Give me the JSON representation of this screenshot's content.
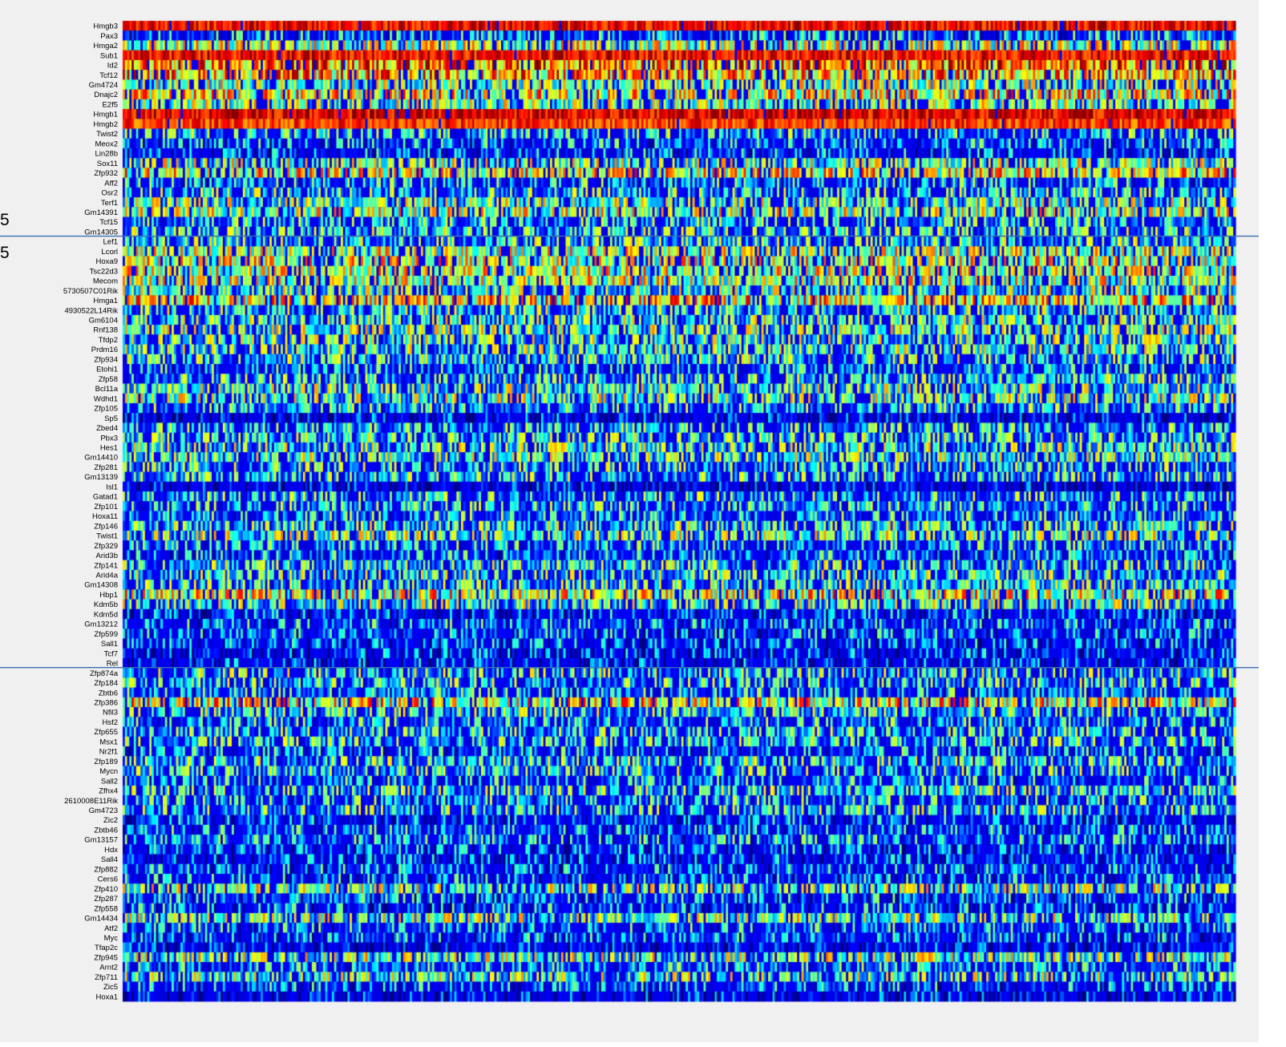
{
  "chart_data": {
    "type": "heatmap",
    "title": "",
    "xlabel": "",
    "ylabel": "",
    "colormap": "jet",
    "colors": {
      "figure_bg": "#f0f0f0",
      "divider": "#3a6fb0"
    },
    "side_labels": [
      "5",
      "5"
    ],
    "rows": [
      "Hmgb3",
      "Pax3",
      "Hmga2",
      "Sub1",
      "Id2",
      "Tcf12",
      "Gm4724",
      "Dnajc2",
      "E2f5",
      "Hmgb1",
      "Hmgb2",
      "Twist2",
      "Meox2",
      "Lin28b",
      "Sox11",
      "Zfp932",
      "Aff2",
      "Osr2",
      "Terf1",
      "Gm14391",
      "Tcf15",
      "Gm14305",
      "Lef1",
      "Lcorl",
      "Hoxa9",
      "Tsc22d3",
      "Mecom",
      "5730507C01Rik",
      "Hmga1",
      "4930522L14Rik",
      "Gm6104",
      "Rnf138",
      "Tfdp2",
      "Prdm16",
      "Zfp934",
      "Etohi1",
      "Zfp58",
      "Bcl11a",
      "Wdhd1",
      "Zfp105",
      "Sp5",
      "Zbed4",
      "Pbx3",
      "Hes1",
      "Gm14410",
      "Zfp281",
      "Gm13139",
      "Isl1",
      "Gatad1",
      "Zfp101",
      "Hoxa11",
      "Zfp146",
      "Twist1",
      "Zfp329",
      "Arid3b",
      "Zfp141",
      "Arid4a",
      "Gm14308",
      "Hbp1",
      "Kdm5b",
      "Kdm5d",
      "Gm13212",
      "Zfp599",
      "Sall1",
      "Tcf7",
      "Rel",
      "Zfp874a",
      "Zfp184",
      "Zbtb6",
      "Zfp386",
      "Nfil3",
      "Hsf2",
      "Zfp655",
      "Msx1",
      "Nr2f1",
      "Zfp189",
      "Mycn",
      "Sall2",
      "Zfhx4",
      "2610008E11Rik",
      "Gm4723",
      "Zic2",
      "Zbtb46",
      "Gm13157",
      "Hdx",
      "Sall4",
      "Zfp882",
      "Cers6",
      "Zfp410",
      "Zfp287",
      "Zfp558",
      "Gm14434",
      "Atf2",
      "Myc",
      "Tfap2c",
      "Zfp945",
      "Arnt2",
      "Zfp711",
      "Zic5",
      "Hoxa1"
    ],
    "row_mean_level": [
      0.88,
      0.28,
      0.55,
      0.88,
      0.75,
      0.7,
      0.5,
      0.62,
      0.5,
      0.9,
      0.82,
      0.35,
      0.28,
      0.22,
      0.5,
      0.62,
      0.3,
      0.38,
      0.48,
      0.55,
      0.35,
      0.4,
      0.4,
      0.55,
      0.58,
      0.58,
      0.55,
      0.45,
      0.65,
      0.4,
      0.45,
      0.48,
      0.45,
      0.45,
      0.4,
      0.3,
      0.38,
      0.45,
      0.48,
      0.35,
      0.1,
      0.35,
      0.4,
      0.45,
      0.45,
      0.38,
      0.38,
      0.05,
      0.35,
      0.35,
      0.32,
      0.42,
      0.48,
      0.32,
      0.28,
      0.4,
      0.42,
      0.4,
      0.6,
      0.45,
      0.2,
      0.28,
      0.25,
      0.22,
      0.18,
      0.15,
      0.4,
      0.38,
      0.3,
      0.62,
      0.4,
      0.32,
      0.38,
      0.38,
      0.28,
      0.4,
      0.38,
      0.3,
      0.4,
      0.32,
      0.38,
      0.22,
      0.28,
      0.3,
      0.22,
      0.2,
      0.25,
      0.25,
      0.5,
      0.25,
      0.25,
      0.48,
      0.28,
      0.25,
      0.08,
      0.5,
      0.3,
      0.45,
      0.25,
      0.08
    ],
    "cells_per_row": 500,
    "cluster_breaks_after_row": [
      21,
      65
    ]
  }
}
